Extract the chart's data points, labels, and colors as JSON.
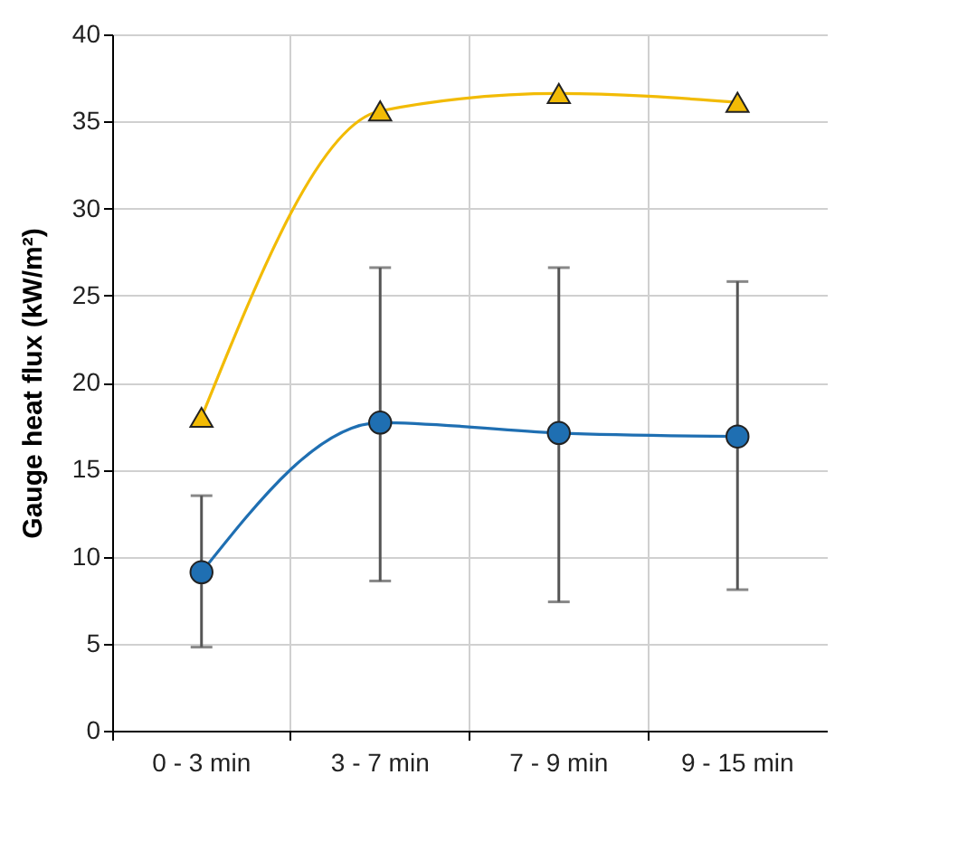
{
  "chart_data": {
    "type": "line",
    "ylabel": "Gauge heat flux (kW/m²)",
    "categories": [
      "0 - 3 min",
      "3 - 7 min",
      "7 - 9 min",
      "9 - 15 min"
    ],
    "series": [
      {
        "color": "#f2bb05",
        "marker": "triangle",
        "values": [
          18.0,
          35.6,
          36.6,
          36.1
        ]
      },
      {
        "color": "#1f6fb2",
        "marker": "circle",
        "values": [
          9.1,
          17.7,
          17.1,
          16.9
        ],
        "errors": [
          [
            4.8,
            13.5
          ],
          [
            8.6,
            26.6
          ],
          [
            7.4,
            26.6
          ],
          [
            8.1,
            25.8
          ]
        ]
      }
    ],
    "ylim": [
      0,
      40
    ],
    "yticks": [
      0,
      5,
      10,
      15,
      20,
      25,
      30,
      35,
      40
    ],
    "grid": true
  }
}
